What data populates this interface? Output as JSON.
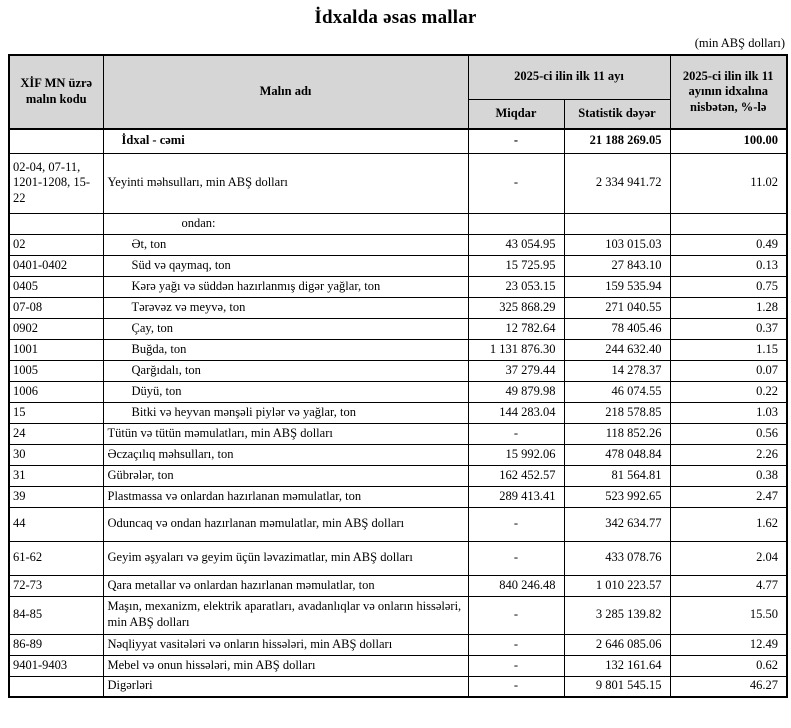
{
  "page": {
    "title": "İdxalda əsas mallar",
    "unit_note": "(min ABŞ dolları)"
  },
  "colors": {
    "header_bg": "#d6d6d6",
    "border": "#000000",
    "text": "#000000"
  },
  "table": {
    "headers": {
      "code": "XİF MN üzrə malın kodu",
      "name": "Malın adı",
      "period_group": "2025-ci ilin ilk 11 ayı",
      "quantity": "Miqdar",
      "stat_value": "Statistik dəyər",
      "share": "2025-ci ilin ilk 11 ayının idxalına nisbətən, %-lə"
    },
    "rows": [
      {
        "code": "",
        "name": "İdxal - cəmi",
        "qty": "-",
        "value": "21 188 269.05",
        "share": "100.00",
        "indent": 1,
        "bold": true
      },
      {
        "code": "02-04, 07-11, 1201-1208, 15-22",
        "name": "Yeyinti məhsulları, min ABŞ dolları",
        "qty": "-",
        "value": "2 334 941.72",
        "share": "11.02",
        "indent": 0,
        "size": "code3"
      },
      {
        "code": "",
        "name": "ondan:",
        "qty": "",
        "value": "",
        "share": "",
        "indent": 3
      },
      {
        "code": "02",
        "name": "Ət, ton",
        "qty": "43 054.95",
        "value": "103 015.03",
        "share": "0.49",
        "indent": 2
      },
      {
        "code": "0401-0402",
        "name": "Süd və qaymaq, ton",
        "qty": "15 725.95",
        "value": "27 843.10",
        "share": "0.13",
        "indent": 2
      },
      {
        "code": "0405",
        "name": "Kərə yağı və süddən hazırlanmış digər yağlar, ton",
        "qty": "23 053.15",
        "value": "159 535.94",
        "share": "0.75",
        "indent": 2
      },
      {
        "code": "07-08",
        "name": "Tərəvəz və meyvə, ton",
        "qty": "325 868.29",
        "value": "271 040.55",
        "share": "1.28",
        "indent": 2
      },
      {
        "code": "0902",
        "name": "Çay, ton",
        "qty": "12 782.64",
        "value": "78 405.46",
        "share": "0.37",
        "indent": 2
      },
      {
        "code": "1001",
        "name": "Buğda, ton",
        "qty": "1 131 876.30",
        "value": "244 632.40",
        "share": "1.15",
        "indent": 2
      },
      {
        "code": "1005",
        "name": "Qarğıdalı, ton",
        "qty": "37 279.44",
        "value": "14 278.37",
        "share": "0.07",
        "indent": 2
      },
      {
        "code": "1006",
        "name": "Düyü, ton",
        "qty": "49 879.98",
        "value": "46 074.55",
        "share": "0.22",
        "indent": 2
      },
      {
        "code": "15",
        "name": "Bitki və heyvan mənşəli piylər və yağlar, ton",
        "qty": "144 283.04",
        "value": "218 578.85",
        "share": "1.03",
        "indent": 2
      },
      {
        "code": "24",
        "name": "Tütün və tütün məmulatları, min ABŞ dolları",
        "qty": "-",
        "value": "118 852.26",
        "share": "0.56",
        "indent": 0
      },
      {
        "code": "30",
        "name": "Əczaçılıq məhsulları, ton",
        "qty": "15 992.06",
        "value": "478 048.84",
        "share": "2.26",
        "indent": 0
      },
      {
        "code": "31",
        "name": "Gübrələr, ton",
        "qty": "162 452.57",
        "value": "81 564.81",
        "share": "0.38",
        "indent": 0
      },
      {
        "code": "39",
        "name": "Plastmassa və onlardan hazırlanan məmulatlar, ton",
        "qty": "289 413.41",
        "value": "523 992.65",
        "share": "2.47",
        "indent": 0
      },
      {
        "code": "44",
        "name": "Oduncaq və ondan hazırlanan məmulatlar, min ABŞ dolları",
        "qty": "-",
        "value": "342 634.77",
        "share": "1.62",
        "indent": 0,
        "size": "tall"
      },
      {
        "code": "61-62",
        "name": "Geyim əşyaları və geyim üçün ləvazimatlar, min ABŞ dolları",
        "qty": "-",
        "value": "433 078.76",
        "share": "2.04",
        "indent": 0,
        "size": "tall"
      },
      {
        "code": "72-73",
        "name": "Qara metallar və onlardan hazırlanan məmulatlar, ton",
        "qty": "840 246.48",
        "value": "1 010 223.57",
        "share": "4.77",
        "indent": 0
      },
      {
        "code": "84-85",
        "name": "Maşın, mexanizm, elektrik aparatları, avadanlıqlar və onların hissələri, min ABŞ dolları",
        "qty": "-",
        "value": "3 285 139.82",
        "share": "15.50",
        "indent": 0,
        "size": "two"
      },
      {
        "code": "86-89",
        "name": "Nəqliyyat vasitələri və onların hissələri, min ABŞ dolları",
        "qty": "-",
        "value": "2 646 085.06",
        "share": "12.49",
        "indent": 0
      },
      {
        "code": "9401-9403",
        "name": "Mebel və onun hissələri, min ABŞ dolları",
        "qty": "-",
        "value": "132 161.64",
        "share": "0.62",
        "indent": 0
      },
      {
        "code": "",
        "name": "Digərləri",
        "qty": "-",
        "value": "9 801 545.15",
        "share": "46.27",
        "indent": 0
      }
    ]
  }
}
